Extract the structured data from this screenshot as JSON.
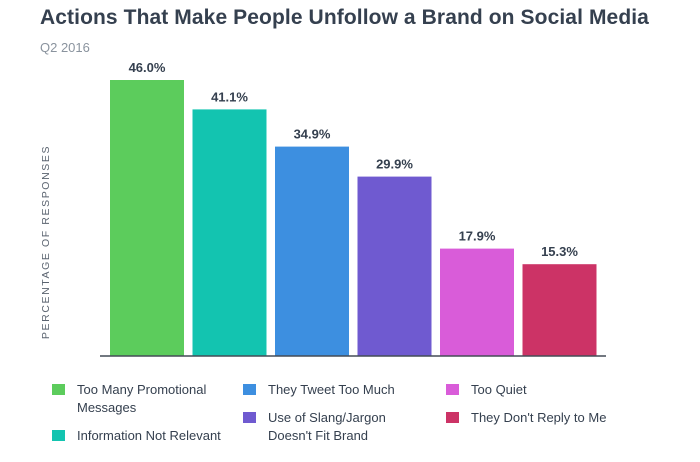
{
  "header": {
    "title": "Actions That Make People Unfollow a Brand on Social Media",
    "subtitle": "Q2 2016"
  },
  "chart_data": {
    "type": "bar",
    "title": "Actions That Make People Unfollow a Brand on Social Media",
    "subtitle": "Q2 2016",
    "xlabel": "",
    "ylabel": "PERCENTAGE OF RESPONSES",
    "ylim": [
      0,
      50
    ],
    "grid": false,
    "legend_placement": "bottom",
    "categories": [
      "Too Many Promotional Messages",
      "Information Not Relevant",
      "They Tweet Too Much",
      "Use of Slang/Jargon Doesn't Fit Brand",
      "Too Quiet",
      "They Don't Reply to Me"
    ],
    "values": [
      46.0,
      41.1,
      34.9,
      29.9,
      17.9,
      15.3
    ],
    "value_labels": [
      "46.0%",
      "41.1%",
      "34.9%",
      "29.9%",
      "17.9%",
      "15.3%"
    ],
    "colors": [
      "#5ccc5c",
      "#13c4b0",
      "#3d8fe0",
      "#6f5ad0",
      "#d95cd9",
      "#cc3366"
    ]
  },
  "legend": {
    "items": [
      {
        "label": "Too Many Promotional Messages",
        "color": "#5ccc5c"
      },
      {
        "label": "Information Not Relevant",
        "color": "#13c4b0"
      },
      {
        "label": "They Tweet Too Much",
        "color": "#3d8fe0"
      },
      {
        "label": "Use of Slang/Jargon Doesn't Fit Brand",
        "color": "#6f5ad0"
      },
      {
        "label": "Too Quiet",
        "color": "#d95cd9"
      },
      {
        "label": "They Don't Reply to Me",
        "color": "#cc3366"
      }
    ]
  }
}
